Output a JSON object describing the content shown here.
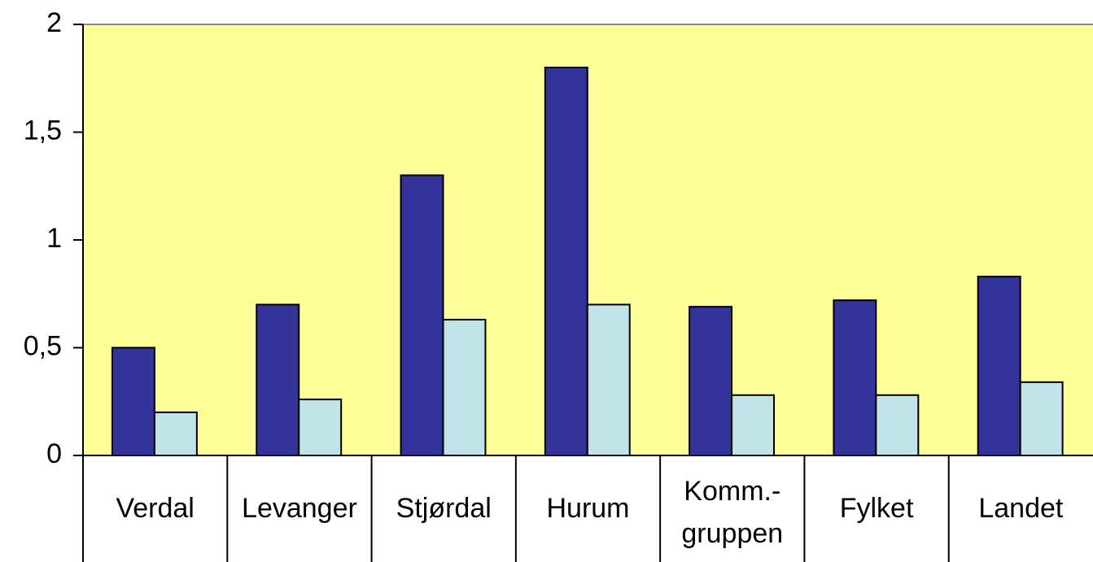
{
  "chart_data": {
    "type": "bar",
    "categories": [
      "Verdal",
      "Levanger",
      "Stjørdal",
      "Hurum",
      "Komm.-gruppen",
      "Fylket",
      "Landet"
    ],
    "series": [
      {
        "color": "#333399",
        "values": [
          0.5,
          0.7,
          1.3,
          1.8,
          0.69,
          0.72,
          0.83
        ]
      },
      {
        "color": "#c0e4e8",
        "values": [
          0.2,
          0.26,
          0.63,
          0.7,
          0.28,
          0.28,
          0.34
        ]
      }
    ],
    "ylim": [
      0,
      2
    ],
    "yticks": [
      0,
      {
        "value": 0.5,
        "label": "0,5"
      },
      1,
      {
        "value": 1.5,
        "label": "1,5"
      },
      2
    ],
    "plot_background": "#ffff99"
  }
}
